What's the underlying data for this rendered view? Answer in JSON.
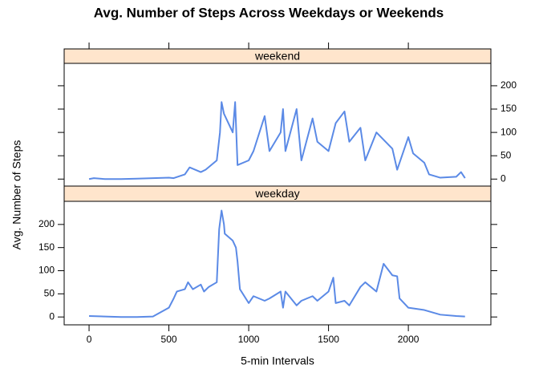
{
  "title": "Avg. Number of Steps Across Weekdays or Weekends",
  "x_label": "5-min Intervals",
  "y_label": "Avg. Number of Steps",
  "chart_data": [
    {
      "type": "line",
      "title": "weekend",
      "x": [
        0,
        30,
        100,
        200,
        300,
        400,
        500,
        530,
        600,
        630,
        700,
        730,
        800,
        820,
        830,
        845,
        900,
        915,
        930,
        1000,
        1030,
        1100,
        1130,
        1200,
        1215,
        1230,
        1300,
        1330,
        1400,
        1430,
        1500,
        1545,
        1600,
        1630,
        1700,
        1730,
        1800,
        1900,
        1930,
        2000,
        2030,
        2100,
        2130,
        2200,
        2300,
        2330,
        2355
      ],
      "series": [
        {
          "color": "#5b8ae6",
          "values": [
            0,
            2,
            0,
            0,
            1,
            2,
            3,
            2,
            10,
            25,
            15,
            20,
            40,
            100,
            165,
            140,
            100,
            165,
            30,
            40,
            60,
            135,
            60,
            100,
            150,
            60,
            150,
            40,
            130,
            80,
            60,
            120,
            145,
            80,
            110,
            40,
            100,
            65,
            20,
            90,
            55,
            35,
            10,
            3,
            5,
            15,
            2
          ]
        }
      ],
      "xlim": [
        -156,
        2517
      ],
      "ylim": [
        -15,
        248
      ],
      "xticks": [
        0,
        500,
        1000,
        1500,
        2000
      ],
      "yticks": [
        0,
        50,
        100,
        150,
        200
      ]
    },
    {
      "type": "line",
      "title": "weekday",
      "x": [
        0,
        100,
        200,
        300,
        400,
        500,
        530,
        550,
        600,
        620,
        650,
        700,
        720,
        750,
        800,
        815,
        830,
        845,
        850,
        900,
        920,
        930,
        945,
        1000,
        1030,
        1100,
        1130,
        1200,
        1215,
        1230,
        1300,
        1330,
        1400,
        1430,
        1500,
        1530,
        1545,
        1600,
        1630,
        1700,
        1730,
        1800,
        1845,
        1900,
        1930,
        1945,
        2000,
        2100,
        2200,
        2300,
        2355
      ],
      "series": [
        {
          "color": "#5b8ae6",
          "values": [
            2,
            1,
            0,
            0,
            1,
            20,
            40,
            55,
            60,
            75,
            60,
            70,
            55,
            65,
            75,
            190,
            230,
            200,
            180,
            165,
            150,
            120,
            60,
            30,
            45,
            35,
            40,
            55,
            20,
            55,
            25,
            35,
            45,
            35,
            55,
            85,
            30,
            35,
            25,
            65,
            75,
            55,
            115,
            90,
            88,
            40,
            20,
            15,
            5,
            2,
            1
          ]
        }
      ],
      "xlim": [
        -156,
        2517
      ],
      "ylim": [
        -17,
        250
      ],
      "xticks": [
        0,
        500,
        1000,
        1500,
        2000
      ],
      "yticks": [
        0,
        50,
        100,
        150,
        200
      ]
    }
  ]
}
